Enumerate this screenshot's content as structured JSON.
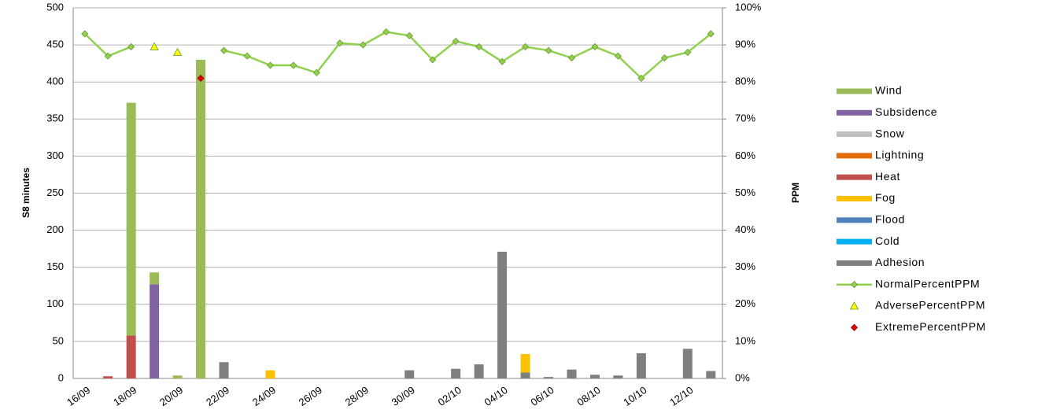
{
  "chart_data": {
    "type": "bar",
    "stacked": true,
    "y_label": "S8 minutes",
    "y2_label": "PPM",
    "categories": [
      "16/09",
      null,
      "18/09",
      null,
      "20/09",
      null,
      "22/09",
      null,
      "24/09",
      null,
      "26/09",
      null,
      "28/09",
      null,
      "30/09",
      null,
      "02/10",
      null,
      "04/10",
      null,
      "06/10",
      null,
      "08/10",
      null,
      "10/10",
      null,
      "12/10",
      null
    ],
    "ylim": [
      0,
      500
    ],
    "yticks": [
      0,
      50,
      100,
      150,
      200,
      250,
      300,
      350,
      400,
      450,
      500
    ],
    "y2lim": [
      0,
      100
    ],
    "y2ticks": [
      {
        "value": 0,
        "label": "0%"
      },
      {
        "value": 10,
        "label": "10%"
      },
      {
        "value": 20,
        "label": "20%"
      },
      {
        "value": 30,
        "label": "30%"
      },
      {
        "value": 40,
        "label": "40%"
      },
      {
        "value": 50,
        "label": "50%"
      },
      {
        "value": 60,
        "label": "60%"
      },
      {
        "value": 70,
        "label": "70%"
      },
      {
        "value": 80,
        "label": "80%"
      },
      {
        "value": 90,
        "label": "90%"
      },
      {
        "value": 100,
        "label": "100%"
      }
    ],
    "grid": true,
    "legend": "right",
    "series": [
      {
        "name": "Wind",
        "type": "bar",
        "color": "#9bbb59",
        "values": [
          0,
          0,
          314,
          16,
          4,
          430,
          0,
          0,
          0,
          0,
          0,
          0,
          0,
          0,
          0,
          0,
          0,
          0,
          0,
          0,
          0,
          0,
          0,
          0,
          0,
          0,
          0,
          0
        ]
      },
      {
        "name": "Subsidence",
        "type": "bar",
        "color": "#8064a2",
        "values": [
          0,
          0,
          0,
          127,
          0,
          0,
          0,
          0,
          0,
          0,
          0,
          0,
          0,
          0,
          0,
          0,
          0,
          0,
          0,
          0,
          0,
          0,
          0,
          0,
          0,
          0,
          0,
          0
        ]
      },
      {
        "name": "Snow",
        "type": "bar",
        "color": "#bfbfbf",
        "values": [
          0,
          0,
          0,
          0,
          0,
          0,
          0,
          0,
          0,
          0,
          0,
          0,
          0,
          0,
          0,
          0,
          0,
          0,
          0,
          0,
          0,
          0,
          0,
          0,
          0,
          0,
          0,
          0
        ]
      },
      {
        "name": "Lightning",
        "type": "bar",
        "color": "#e46c0a",
        "values": [
          0,
          0,
          0,
          0,
          0,
          0,
          0,
          0,
          0,
          0,
          0,
          0,
          0,
          0,
          0,
          0,
          0,
          0,
          0,
          0,
          0,
          0,
          0,
          0,
          0,
          0,
          0,
          0
        ]
      },
      {
        "name": "Heat",
        "type": "bar",
        "color": "#c0504d",
        "values": [
          0,
          3,
          58,
          0,
          0,
          0,
          0,
          0,
          0,
          0,
          0,
          0,
          0,
          0,
          0,
          0,
          0,
          0,
          0,
          0,
          0,
          0,
          0,
          0,
          0,
          0,
          0,
          0
        ]
      },
      {
        "name": "Fog",
        "type": "bar",
        "color": "#ffc000",
        "values": [
          0,
          0,
          0,
          0,
          0,
          0,
          0,
          0,
          11,
          0,
          0,
          0,
          0,
          0,
          0,
          0,
          0,
          0,
          0,
          25,
          0,
          0,
          0,
          0,
          0,
          0,
          0,
          0
        ]
      },
      {
        "name": "Flood",
        "type": "bar",
        "color": "#4f81bd",
        "values": [
          0,
          0,
          0,
          0,
          0,
          0,
          0,
          0,
          0,
          0,
          0,
          0,
          0,
          0,
          0,
          0,
          0,
          0,
          0,
          0,
          0,
          0,
          0,
          0,
          0,
          0,
          0,
          0
        ]
      },
      {
        "name": "Cold",
        "type": "bar",
        "color": "#00b0f0",
        "values": [
          0,
          0,
          0,
          0,
          0,
          0,
          0,
          0,
          0,
          0,
          0,
          0,
          0,
          0,
          0,
          0,
          0,
          0,
          0,
          0,
          0,
          0,
          0,
          0,
          0,
          0,
          0,
          0
        ]
      },
      {
        "name": "Adhesion",
        "type": "bar",
        "color": "#7f7f7f",
        "values": [
          0,
          0,
          0,
          0,
          0,
          0,
          22,
          0,
          0,
          0,
          0,
          0,
          0,
          0,
          11,
          0,
          13,
          19,
          171,
          8,
          2,
          12,
          5,
          4,
          34,
          0,
          40,
          10
        ]
      },
      {
        "name": "NormalPercentPPM",
        "type": "line",
        "axis": "y2",
        "color": "#92d050",
        "values": [
          93,
          87,
          89.5,
          null,
          null,
          null,
          88.5,
          87,
          84.5,
          84.5,
          82.5,
          90.5,
          90,
          93.5,
          92.5,
          86,
          91,
          89.5,
          85.5,
          89.5,
          88.5,
          86.5,
          89.5,
          87,
          81,
          86.5,
          88,
          93
        ]
      },
      {
        "name": "AdversePercentPPM",
        "type": "triangle",
        "axis": "y2",
        "color": "#ffff00",
        "values": [
          null,
          null,
          null,
          89.5,
          88,
          null,
          null,
          null,
          null,
          null,
          null,
          null,
          null,
          null,
          null,
          null,
          null,
          null,
          null,
          null,
          null,
          null,
          null,
          null,
          null,
          null,
          null,
          null
        ]
      },
      {
        "name": "ExtremePercentPPM",
        "type": "diamond",
        "axis": "y2",
        "color": "#e00000",
        "values": [
          null,
          null,
          null,
          null,
          null,
          81,
          null,
          null,
          null,
          null,
          null,
          null,
          null,
          null,
          null,
          null,
          null,
          null,
          null,
          null,
          null,
          null,
          null,
          null,
          null,
          null,
          null,
          null
        ]
      }
    ]
  }
}
